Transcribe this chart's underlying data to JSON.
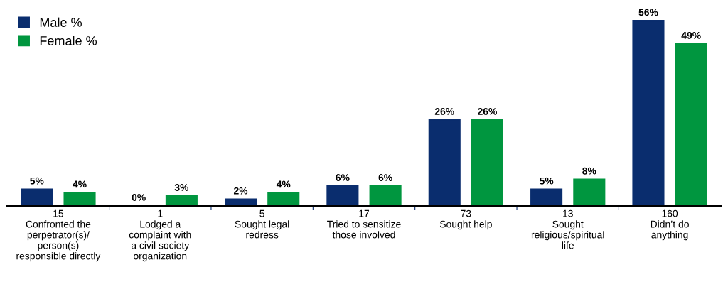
{
  "chart_data": {
    "type": "bar",
    "categories": [
      "15\nConfronted the\nperpetrator(s)/\nperson(s)\nresponsible directly",
      "1\nLodged a\ncomplaint with\na civil society\norganization",
      "5\nSought legal\nredress",
      "17\nTried to sensitize\nthose involved",
      "73\nSought help",
      "13\nSought\nreligious/spiritual\nlife",
      "160\nDidn’t do\nanything"
    ],
    "series": [
      {
        "name": "Male %",
        "color": "#0a2d6e",
        "values": [
          5,
          0,
          2,
          6,
          26,
          5,
          56
        ],
        "value_labels": [
          "5%",
          "0%",
          "2%",
          "6%",
          "26%",
          "5%",
          "56%"
        ]
      },
      {
        "name": "Female %",
        "color": "#00963f",
        "values": [
          4,
          3,
          4,
          6,
          26,
          8,
          49
        ],
        "value_labels": [
          "4%",
          "3%",
          "4%",
          "6%",
          "26%",
          "8%",
          "49%"
        ]
      }
    ],
    "legend": "top left",
    "grid": false
  }
}
